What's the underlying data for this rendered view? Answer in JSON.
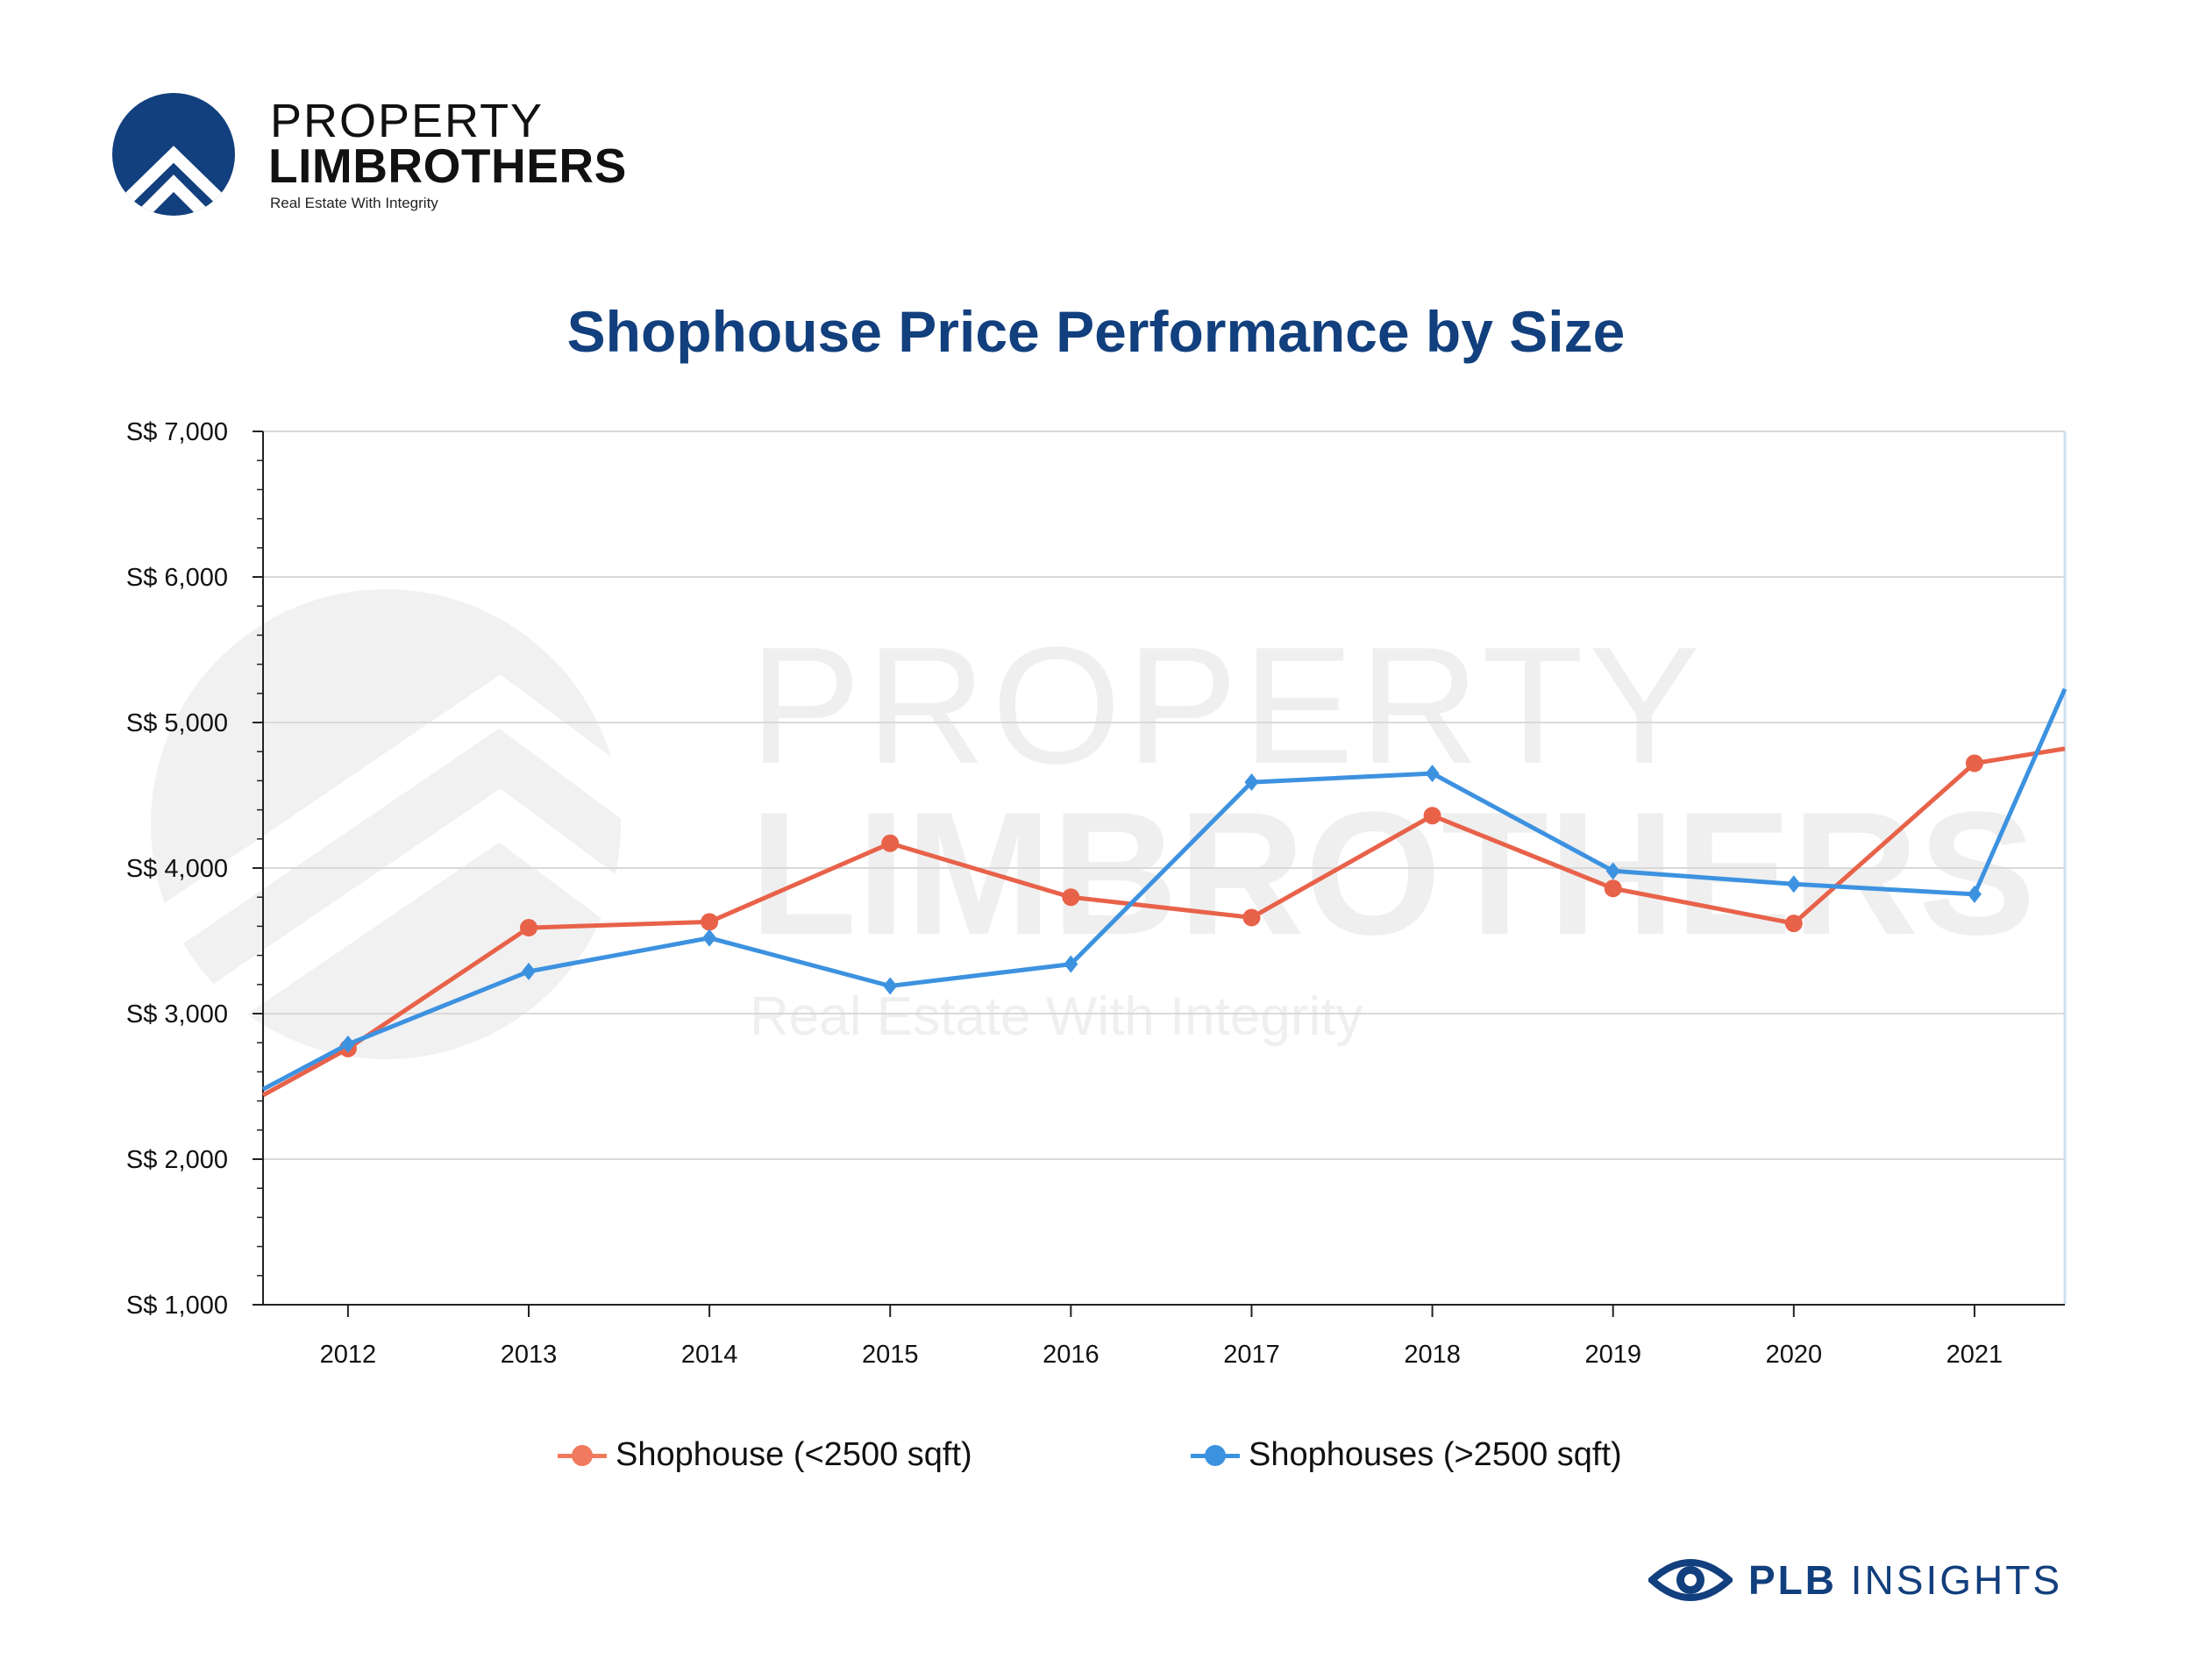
{
  "logo": {
    "line1": "PROPERTY",
    "line2": "LIMBROTHERS",
    "tagline": "Real Estate With Integrity"
  },
  "watermark": {
    "line1": "PROPERTY",
    "line2": "LIMBROTHERS",
    "tagline": "Real Estate With Integrity"
  },
  "brand": {
    "bold": "PLB",
    "rest": "INSIGHTS",
    "icon": "eye-icon"
  },
  "colors": {
    "series1": "#e8624a",
    "series2": "#3d92e0",
    "title": "#123f7d",
    "grid": "#d9d9d9"
  },
  "chart_data": {
    "type": "line",
    "title": "Shophouse Price Performance by Size",
    "xlabel": "",
    "ylabel": "",
    "categories": [
      "2012",
      "2013",
      "2014",
      "2015",
      "2016",
      "2017",
      "2018",
      "2019",
      "2020",
      "2021"
    ],
    "x": [
      2012,
      2013,
      2014,
      2015,
      2016,
      2017,
      2018,
      2019,
      2020,
      2021
    ],
    "xlim": [
      2011.53,
      2021.5
    ],
    "ylim": [
      1000,
      7000
    ],
    "y_ticks": [
      1000,
      2000,
      3000,
      4000,
      5000,
      6000,
      7000
    ],
    "y_tick_labels": [
      "S$ 1,000",
      "S$ 2,000",
      "S$ 3,000",
      "S$ 4,000",
      "S$ 5,000",
      "S$ 6,000",
      "S$ 7,000"
    ],
    "grid": true,
    "legend_position": "bottom",
    "series": [
      {
        "name": "Shophouse (<2500 sqft)",
        "marker": "circle",
        "values": [
          2760,
          3590,
          3630,
          4170,
          3800,
          3660,
          4360,
          3860,
          3620,
          4720
        ],
        "start": [
          2011.53,
          2440
        ],
        "end": [
          2021.5,
          4820
        ]
      },
      {
        "name": "Shophouses (>2500 sqft)",
        "marker": "diamond",
        "values": [
          2790,
          3290,
          3520,
          3190,
          3340,
          4590,
          4650,
          3980,
          3890,
          3820
        ],
        "start": [
          2011.53,
          2480
        ],
        "end": [
          2021.5,
          5230
        ]
      }
    ]
  }
}
